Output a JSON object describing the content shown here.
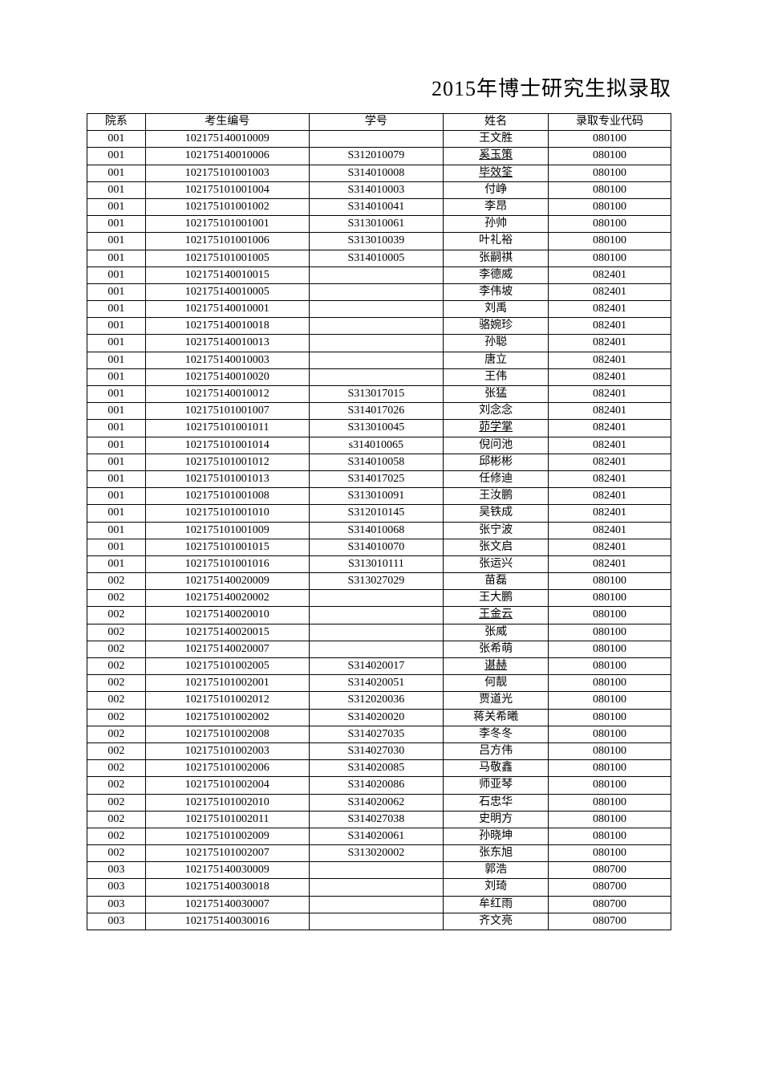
{
  "title": "2015年博士研究生拟录取",
  "table": {
    "columns": [
      "院系",
      "考生编号",
      "学号",
      "姓名",
      "录取专业代码"
    ],
    "rows": [
      {
        "dept": "001",
        "examId": "102175140010009",
        "studentId": "",
        "name": "王文胜",
        "major": "080100",
        "underline": false
      },
      {
        "dept": "001",
        "examId": "102175140010006",
        "studentId": "S312010079",
        "name": "奚玉策",
        "major": "080100",
        "underline": true
      },
      {
        "dept": "001",
        "examId": "102175101001003",
        "studentId": "S314010008",
        "name": "毕效筌",
        "major": "080100",
        "underline": true
      },
      {
        "dept": "001",
        "examId": "102175101001004",
        "studentId": "S314010003",
        "name": "付峥",
        "major": "080100",
        "underline": false
      },
      {
        "dept": "001",
        "examId": "102175101001002",
        "studentId": "S314010041",
        "name": "李昂",
        "major": "080100",
        "underline": false
      },
      {
        "dept": "001",
        "examId": "102175101001001",
        "studentId": "S313010061",
        "name": "孙帅",
        "major": "080100",
        "underline": false
      },
      {
        "dept": "001",
        "examId": "102175101001006",
        "studentId": "S313010039",
        "name": "叶礼裕",
        "major": "080100",
        "underline": false
      },
      {
        "dept": "001",
        "examId": "102175101001005",
        "studentId": "S314010005",
        "name": "张嗣祺",
        "major": "080100",
        "underline": false
      },
      {
        "dept": "001",
        "examId": "102175140010015",
        "studentId": "",
        "name": "李德威",
        "major": "082401",
        "underline": false
      },
      {
        "dept": "001",
        "examId": "102175140010005",
        "studentId": "",
        "name": "李伟坡",
        "major": "082401",
        "underline": false
      },
      {
        "dept": "001",
        "examId": "102175140010001",
        "studentId": "",
        "name": "刘禹",
        "major": "082401",
        "underline": false
      },
      {
        "dept": "001",
        "examId": "102175140010018",
        "studentId": "",
        "name": "骆婉珍",
        "major": "082401",
        "underline": false
      },
      {
        "dept": "001",
        "examId": "102175140010013",
        "studentId": "",
        "name": "孙聪",
        "major": "082401",
        "underline": false
      },
      {
        "dept": "001",
        "examId": "102175140010003",
        "studentId": "",
        "name": "唐立",
        "major": "082401",
        "underline": false
      },
      {
        "dept": "001",
        "examId": "102175140010020",
        "studentId": "",
        "name": "王伟",
        "major": "082401",
        "underline": false
      },
      {
        "dept": "001",
        "examId": "102175140010012",
        "studentId": "S313017015",
        "name": "张猛",
        "major": "082401",
        "underline": false
      },
      {
        "dept": "001",
        "examId": "102175101001007",
        "studentId": "S314017026",
        "name": "刘念念",
        "major": "082401",
        "underline": false
      },
      {
        "dept": "001",
        "examId": "102175101001011",
        "studentId": "S313010045",
        "name": "茆学掌",
        "major": "082401",
        "underline": true
      },
      {
        "dept": "001",
        "examId": "102175101001014",
        "studentId": "s314010065",
        "name": "倪问池",
        "major": "082401",
        "underline": false
      },
      {
        "dept": "001",
        "examId": "102175101001012",
        "studentId": "S314010058",
        "name": "邱彬彬",
        "major": "082401",
        "underline": false
      },
      {
        "dept": "001",
        "examId": "102175101001013",
        "studentId": "S314017025",
        "name": "任修迪",
        "major": "082401",
        "underline": false
      },
      {
        "dept": "001",
        "examId": "102175101001008",
        "studentId": "S313010091",
        "name": "王汝鹏",
        "major": "082401",
        "underline": false
      },
      {
        "dept": "001",
        "examId": "102175101001010",
        "studentId": "S312010145",
        "name": "吴铁成",
        "major": "082401",
        "underline": false
      },
      {
        "dept": "001",
        "examId": "102175101001009",
        "studentId": "S314010068",
        "name": "张宁波",
        "major": "082401",
        "underline": false
      },
      {
        "dept": "001",
        "examId": "102175101001015",
        "studentId": "S314010070",
        "name": "张文启",
        "major": "082401",
        "underline": false
      },
      {
        "dept": "001",
        "examId": "102175101001016",
        "studentId": "S313010111",
        "name": "张运兴",
        "major": "082401",
        "underline": false
      },
      {
        "dept": "002",
        "examId": "102175140020009",
        "studentId": "S313027029",
        "name": "苗磊",
        "major": "080100",
        "underline": false
      },
      {
        "dept": "002",
        "examId": "102175140020002",
        "studentId": "",
        "name": "王大鹏",
        "major": "080100",
        "underline": false
      },
      {
        "dept": "002",
        "examId": "102175140020010",
        "studentId": "",
        "name": "王金云",
        "major": "080100",
        "underline": true
      },
      {
        "dept": "002",
        "examId": "102175140020015",
        "studentId": "",
        "name": "张威",
        "major": "080100",
        "underline": false
      },
      {
        "dept": "002",
        "examId": "102175140020007",
        "studentId": "",
        "name": "张希萌",
        "major": "080100",
        "underline": false
      },
      {
        "dept": "002",
        "examId": "102175101002005",
        "studentId": "S314020017",
        "name": "谌赫",
        "major": "080100",
        "underline": true
      },
      {
        "dept": "002",
        "examId": "102175101002001",
        "studentId": "S314020051",
        "name": "何靓",
        "major": "080100",
        "underline": false
      },
      {
        "dept": "002",
        "examId": "102175101002012",
        "studentId": "S312020036",
        "name": "贾道光",
        "major": "080100",
        "underline": false
      },
      {
        "dept": "002",
        "examId": "102175101002002",
        "studentId": "S314020020",
        "name": "蒋关希曦",
        "major": "080100",
        "underline": false
      },
      {
        "dept": "002",
        "examId": "102175101002008",
        "studentId": "S314027035",
        "name": "李冬冬",
        "major": "080100",
        "underline": false
      },
      {
        "dept": "002",
        "examId": "102175101002003",
        "studentId": "S314027030",
        "name": "吕方伟",
        "major": "080100",
        "underline": false
      },
      {
        "dept": "002",
        "examId": "102175101002006",
        "studentId": "S314020085",
        "name": "马敬鑫",
        "major": "080100",
        "underline": false
      },
      {
        "dept": "002",
        "examId": "102175101002004",
        "studentId": "S314020086",
        "name": "师亚琴",
        "major": "080100",
        "underline": false
      },
      {
        "dept": "002",
        "examId": "102175101002010",
        "studentId": "S314020062",
        "name": "石忠华",
        "major": "080100",
        "underline": false
      },
      {
        "dept": "002",
        "examId": "102175101002011",
        "studentId": "S314027038",
        "name": "史明方",
        "major": "080100",
        "underline": false
      },
      {
        "dept": "002",
        "examId": "102175101002009",
        "studentId": "S314020061",
        "name": "孙晓坤",
        "major": "080100",
        "underline": false
      },
      {
        "dept": "002",
        "examId": "102175101002007",
        "studentId": "S313020002",
        "name": "张东旭",
        "major": "080100",
        "underline": false
      },
      {
        "dept": "003",
        "examId": "102175140030009",
        "studentId": "",
        "name": "郭浩",
        "major": "080700",
        "underline": false
      },
      {
        "dept": "003",
        "examId": "102175140030018",
        "studentId": "",
        "name": "刘琦",
        "major": "080700",
        "underline": false
      },
      {
        "dept": "003",
        "examId": "102175140030007",
        "studentId": "",
        "name": "牟红雨",
        "major": "080700",
        "underline": false
      },
      {
        "dept": "003",
        "examId": "102175140030016",
        "studentId": "",
        "name": "齐文亮",
        "major": "080700",
        "underline": false
      }
    ]
  },
  "style": {
    "title_fontsize": 26,
    "cell_fontsize": 14,
    "border_color": "#000000",
    "background_color": "#ffffff",
    "text_color": "#000000"
  }
}
